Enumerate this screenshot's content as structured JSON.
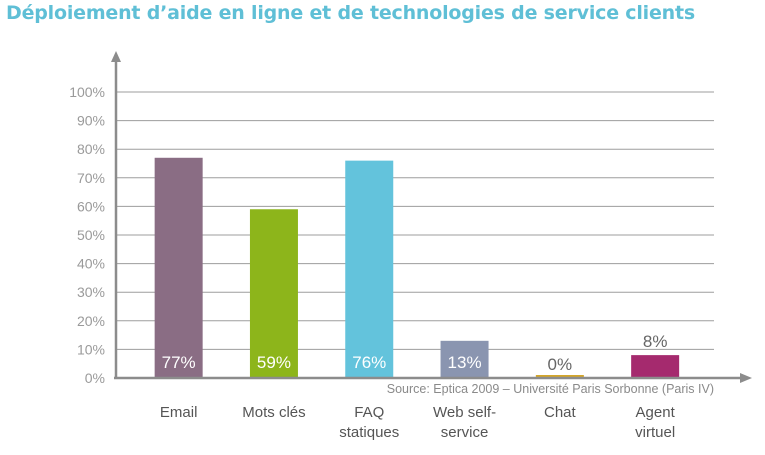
{
  "title": "Déploiement d’aide en ligne et de technologies de service clients",
  "source": "Source: Eptica 2009 – Université Paris Sorbonne (Paris IV)",
  "chart_data": {
    "type": "bar",
    "title": "Déploiement d’aide en ligne et de technologies de service clients",
    "categories": [
      [
        "Email"
      ],
      [
        "Mots clés"
      ],
      [
        "FAQ",
        "statiques"
      ],
      [
        "Web self-",
        "service"
      ],
      [
        "Chat"
      ],
      [
        "Agent",
        "virtuel"
      ]
    ],
    "values": [
      77,
      59,
      76,
      13,
      0,
      8
    ],
    "value_labels": [
      "77%",
      "59%",
      "76%",
      "13%",
      "0%",
      "8%"
    ],
    "colors": [
      "#8a6d84",
      "#8db51b",
      "#63c3dc",
      "#8a95b0",
      "#d4a62a",
      "#a52a6e"
    ],
    "yticks": [
      "0%",
      "10%",
      "20%",
      "30%",
      "40%",
      "50%",
      "60%",
      "70%",
      "80%",
      "90%",
      "100%"
    ],
    "ylim": [
      0,
      100
    ],
    "grid": true,
    "xlabel": "",
    "ylabel": ""
  }
}
